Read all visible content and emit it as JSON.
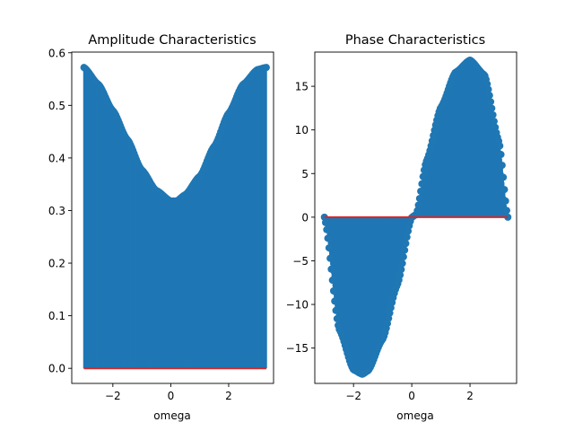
{
  "chart_data": [
    {
      "type": "stem",
      "title": "Amplitude Characteristics",
      "xlabel": "omega",
      "ylabel": "",
      "xlim": [
        -3.42,
        3.55
      ],
      "ylim": [
        -0.0287,
        0.6013
      ],
      "xticks": [
        {
          "value": -2,
          "label": "−2"
        },
        {
          "value": 0,
          "label": "0"
        },
        {
          "value": 2,
          "label": "2"
        }
      ],
      "yticks": [
        {
          "value": 0.0,
          "label": "0.0"
        },
        {
          "value": 0.1,
          "label": "0.1"
        },
        {
          "value": 0.2,
          "label": "0.2"
        },
        {
          "value": 0.3,
          "label": "0.3"
        },
        {
          "value": 0.4,
          "label": "0.4"
        },
        {
          "value": 0.5,
          "label": "0.5"
        },
        {
          "value": 0.6,
          "label": "0.6"
        }
      ],
      "baseline": 0,
      "x_range": [
        -3.0,
        3.3
      ],
      "points": [
        [
          -3.0,
          0.572
        ],
        [
          -2.5,
          0.54
        ],
        [
          -2.0,
          0.49
        ],
        [
          -1.5,
          0.435
        ],
        [
          -1.0,
          0.377
        ],
        [
          -0.5,
          0.338
        ],
        [
          0.0,
          0.318
        ],
        [
          0.2,
          0.318
        ],
        [
          0.5,
          0.33
        ],
        [
          1.0,
          0.365
        ],
        [
          1.5,
          0.422
        ],
        [
          2.0,
          0.485
        ],
        [
          2.5,
          0.54
        ],
        [
          3.0,
          0.568
        ],
        [
          3.3,
          0.572
        ]
      ],
      "colors": {
        "stem": "#1f77b4",
        "marker": "#1f77b4",
        "baseline": "#d62728"
      }
    },
    {
      "type": "stem",
      "title": "Phase Characteristics",
      "xlabel": "omega",
      "ylabel": "",
      "xlim": [
        -3.33,
        3.6
      ],
      "ylim": [
        -19.05,
        18.92
      ],
      "xticks": [
        {
          "value": -2,
          "label": "−2"
        },
        {
          "value": 0,
          "label": "0"
        },
        {
          "value": 2,
          "label": "2"
        }
      ],
      "yticks": [
        {
          "value": -15,
          "label": "−15"
        },
        {
          "value": -10,
          "label": "−10"
        },
        {
          "value": -5,
          "label": "−5"
        },
        {
          "value": 0,
          "label": "0"
        },
        {
          "value": 5,
          "label": "5"
        },
        {
          "value": 10,
          "label": "10"
        },
        {
          "value": 15,
          "label": "15"
        }
      ],
      "baseline": 0,
      "x_range": [
        -3.0,
        3.3
      ],
      "points": [
        [
          -3.0,
          0.0
        ],
        [
          -2.5,
          -12.8
        ],
        [
          -2.0,
          -17.5
        ],
        [
          -1.7,
          -18.0
        ],
        [
          -1.5,
          -17.6
        ],
        [
          -1.0,
          -14.0
        ],
        [
          -0.5,
          -7.8
        ],
        [
          0.0,
          0.0
        ],
        [
          0.15,
          0.3
        ],
        [
          0.5,
          6.4
        ],
        [
          1.0,
          12.6
        ],
        [
          1.5,
          16.6
        ],
        [
          2.0,
          18.0
        ],
        [
          2.5,
          16.3
        ],
        [
          3.0,
          8.6
        ],
        [
          3.3,
          0.0
        ]
      ],
      "colors": {
        "stem": "#1f77b4",
        "marker": "#1f77b4",
        "baseline": "#d62728"
      }
    }
  ]
}
